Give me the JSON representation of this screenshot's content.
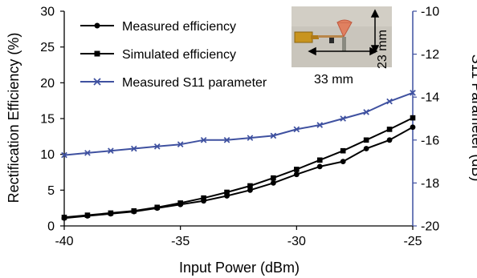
{
  "chart_data": {
    "type": "line",
    "xlabel": "Input Power (dBm)",
    "ylabel": "Rectification Efficiency (%)",
    "y2label": "S11 Parameter (dB)",
    "xlim": [
      -40,
      -25
    ],
    "ylim": [
      0,
      30
    ],
    "y2lim": [
      -20,
      -10
    ],
    "x_ticks": [
      "-40",
      "-35",
      "-30",
      "-25"
    ],
    "y_ticks": [
      "0",
      "5",
      "10",
      "15",
      "20",
      "25",
      "30"
    ],
    "y2_ticks": [
      "-20",
      "-18",
      "-16",
      "-14",
      "-12",
      "-10"
    ],
    "grid": false,
    "legend_position": "top-left",
    "x": [
      -40,
      -39,
      -38,
      -37,
      -36,
      -35,
      -34,
      -33,
      -32,
      -31,
      -30,
      -29,
      -28,
      -27,
      -26,
      -25
    ],
    "series": [
      {
        "name": "Measured efficiency",
        "axis": "left",
        "marker": "circle",
        "color": "#000000",
        "values": [
          1.1,
          1.4,
          1.7,
          2.0,
          2.5,
          3.0,
          3.5,
          4.2,
          5.0,
          6.0,
          7.2,
          8.3,
          9.0,
          10.8,
          12.0,
          13.8
        ]
      },
      {
        "name": "Simulated efficiency",
        "axis": "left",
        "marker": "square",
        "color": "#000000",
        "values": [
          1.2,
          1.5,
          1.8,
          2.1,
          2.6,
          3.2,
          3.9,
          4.7,
          5.6,
          6.7,
          7.9,
          9.2,
          10.5,
          12.0,
          13.5,
          15.1
        ]
      },
      {
        "name": "Measured S11 parameter",
        "axis": "right",
        "marker": "x",
        "color": "#3f51a0",
        "values": [
          -16.7,
          -16.6,
          -16.5,
          -16.4,
          -16.3,
          -16.2,
          -16.0,
          -16.0,
          -15.9,
          -15.8,
          -15.5,
          -15.3,
          -15.0,
          -14.7,
          -14.2,
          -13.8
        ]
      }
    ],
    "inset_photo": {
      "width_label": "33 mm",
      "height_label": "23 mm"
    }
  }
}
